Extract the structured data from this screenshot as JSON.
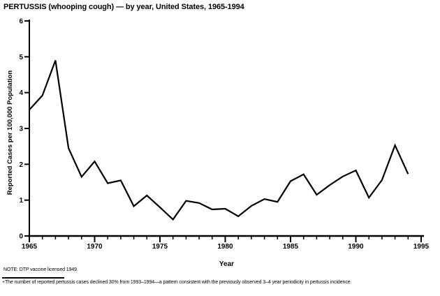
{
  "title": "PERTUSSIS (whooping cough) — by year, United States, 1965-1994",
  "note": "NOTE: DTP vaccine licensed 1949.",
  "footnote": {
    "marker": "+",
    "text": "The number of reported pertussis cases declined 30% from 1993–1994—a pattern consistent with the previously observed 3–4 year periodicity in pertussis incidence."
  },
  "chart_data": {
    "type": "line",
    "title": "PERTUSSIS (whooping cough) — by year, United States, 1965-1994",
    "xlabel": "Year",
    "ylabel": "Reported Cases per 100,000 Population",
    "x": [
      1965,
      1966,
      1967,
      1968,
      1969,
      1970,
      1971,
      1972,
      1973,
      1974,
      1975,
      1976,
      1977,
      1978,
      1979,
      1980,
      1981,
      1982,
      1983,
      1984,
      1985,
      1986,
      1987,
      1988,
      1989,
      1990,
      1991,
      1992,
      1993,
      1994
    ],
    "values": [
      3.52,
      3.92,
      4.9,
      2.45,
      1.65,
      2.08,
      1.47,
      1.55,
      0.83,
      1.13,
      0.8,
      0.46,
      0.98,
      0.92,
      0.74,
      0.76,
      0.55,
      0.84,
      1.03,
      0.95,
      1.53,
      1.72,
      1.15,
      1.42,
      1.66,
      1.83,
      1.07,
      1.56,
      2.53,
      1.73
    ],
    "xlim": [
      1965,
      1995
    ],
    "ylim": [
      0,
      6
    ],
    "x_major_ticks": [
      1965,
      1970,
      1975,
      1980,
      1985,
      1990,
      1995
    ],
    "x_minor_tick_interval": 1,
    "y_ticks": [
      0,
      1,
      2,
      3,
      4,
      5,
      6
    ],
    "grid": false,
    "legend": "none",
    "line_color": "#000000",
    "background_color": "#ffffff"
  }
}
